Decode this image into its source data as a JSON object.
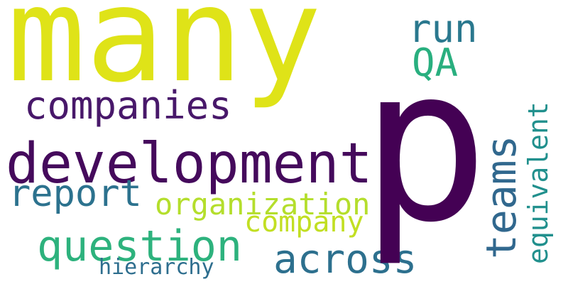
{
  "words": {
    "many": {
      "text": "many",
      "color": "#dfe318"
    },
    "p": {
      "text": "p",
      "color": "#440154"
    },
    "development": {
      "text": "development",
      "color": "#450a5c"
    },
    "companies": {
      "text": "companies",
      "color": "#48186a"
    },
    "report": {
      "text": "report",
      "color": "#2c728e"
    },
    "organization": {
      "text": "organization",
      "color": "#b4de2c"
    },
    "company": {
      "text": "company",
      "color": "#c2df23"
    },
    "question": {
      "text": "question",
      "color": "#2db27d"
    },
    "across": {
      "text": "across",
      "color": "#2d708e"
    },
    "hierarchy": {
      "text": "hierarchy",
      "color": "#2e6e8e"
    },
    "run": {
      "text": "run",
      "color": "#2a788e"
    },
    "qa": {
      "text": "QA",
      "color": "#29af7f"
    },
    "teams": {
      "text": "teams",
      "color": "#31688e"
    },
    "equivalent": {
      "text": "equivalent",
      "color": "#21908d"
    }
  }
}
